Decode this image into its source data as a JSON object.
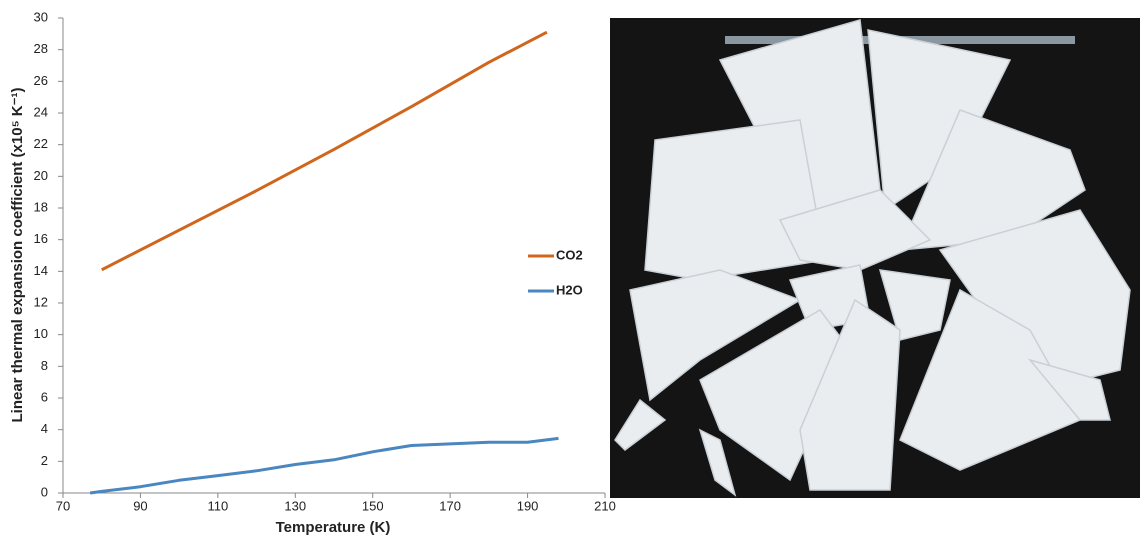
{
  "chart_data": {
    "type": "line",
    "xlabel": "Temperature (K)",
    "ylabel": "Linear  thermal expansion coefficient (x10⁵ K⁻¹)",
    "xlim": [
      70,
      210
    ],
    "xticks": [
      70,
      90,
      110,
      130,
      150,
      170,
      190,
      210
    ],
    "ylim": [
      0,
      30
    ],
    "yticks": [
      0,
      2,
      4,
      6,
      8,
      10,
      12,
      14,
      16,
      18,
      20,
      22,
      24,
      26,
      28,
      30
    ],
    "grid": false,
    "legend": "right",
    "series": [
      {
        "name": "CO2",
        "color": "#d0651c",
        "x": [
          80,
          100,
          120,
          140,
          160,
          180,
          195
        ],
        "values": [
          14.1,
          16.6,
          19.1,
          21.7,
          24.4,
          27.2,
          29.1
        ]
      },
      {
        "name": "H2O",
        "color": "#4a86c0",
        "x": [
          77,
          80,
          90,
          100,
          110,
          120,
          130,
          140,
          150,
          160,
          170,
          180,
          190,
          198
        ],
        "values": [
          0,
          0.1,
          0.4,
          0.8,
          1.1,
          1.4,
          1.8,
          2.1,
          2.6,
          3.0,
          3.1,
          3.2,
          3.2,
          3.45
        ]
      }
    ]
  }
}
